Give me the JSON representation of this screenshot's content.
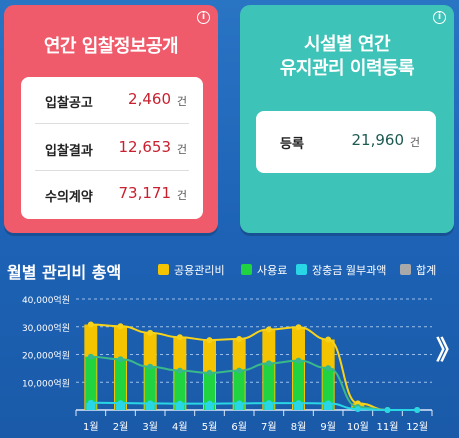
{
  "cards": {
    "bid": {
      "title": "연간 입찰정보공개",
      "rows": [
        {
          "label": "입찰공고",
          "value": "2,460",
          "unit": "건"
        },
        {
          "label": "입찰결과",
          "value": "12,653",
          "unit": "건"
        },
        {
          "label": "수의계약",
          "value": "73,171",
          "unit": "건"
        }
      ]
    },
    "facility": {
      "title_line1": "시설별 연간",
      "title_line2": "유지관리 이력등록",
      "row": {
        "label": "등록",
        "value": "21,960",
        "unit": "건"
      }
    }
  },
  "chart_data": {
    "type": "bar",
    "title": "월별 관리비 총액",
    "categories": [
      "1월",
      "2월",
      "3월",
      "4월",
      "5월",
      "6월",
      "7월",
      "8월",
      "9월",
      "10월",
      "11월",
      "12월"
    ],
    "y_tick_labels": [
      "40,000억원",
      "30,000억원",
      "20,000억원",
      "10,000억원"
    ],
    "y_tick_values": [
      40000,
      30000,
      20000,
      10000
    ],
    "ylim": [
      0,
      40000
    ],
    "grid": true,
    "legend_position": "top-right",
    "series": [
      {
        "name": "공용관리비",
        "color": "#f5c400",
        "values": [
          30800,
          30200,
          27800,
          26200,
          25200,
          25600,
          29000,
          29800,
          25400,
          2400,
          0,
          0
        ]
      },
      {
        "name": "사용료",
        "color": "#1fd341",
        "values": [
          19200,
          18300,
          15600,
          14200,
          13400,
          14200,
          16800,
          17800,
          15100,
          1100,
          0,
          0
        ]
      },
      {
        "name": "장충금 월부과액",
        "color": "#28d6e6",
        "values": [
          2600,
          2500,
          2400,
          2300,
          2300,
          2400,
          2500,
          2500,
          2400,
          300,
          0,
          0
        ]
      },
      {
        "name": "합계",
        "color": "#a9a9a9",
        "values": [
          null,
          null,
          null,
          null,
          null,
          null,
          null,
          null,
          null,
          null,
          null,
          null
        ]
      }
    ]
  },
  "nav": {
    "next_label": "》"
  },
  "info_icon": "i"
}
